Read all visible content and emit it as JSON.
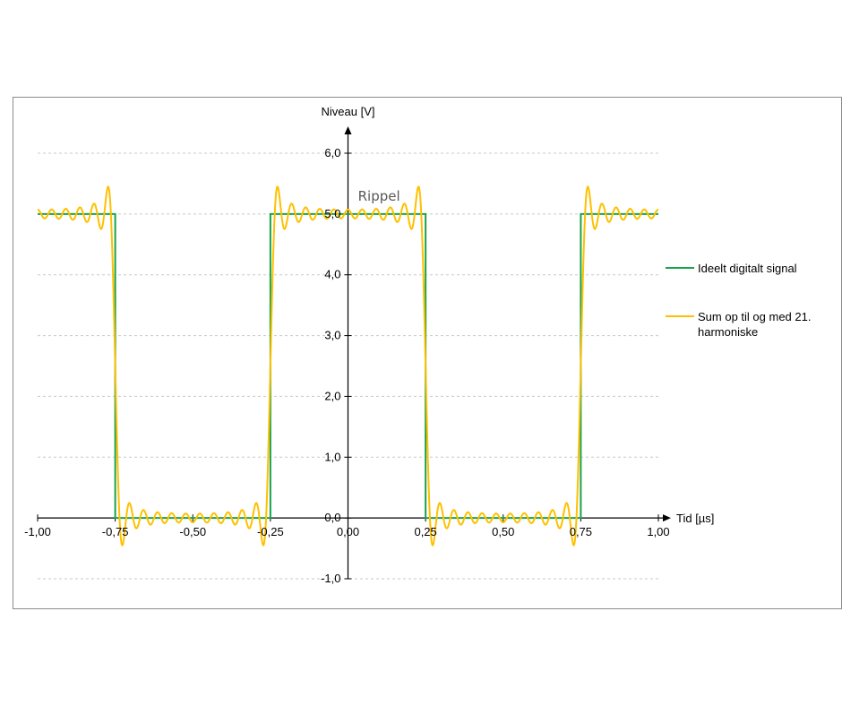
{
  "chart_data": {
    "type": "line",
    "title": "",
    "xlabel": "Tid [µs]",
    "ylabel": "Niveau [V]",
    "xlim": [
      -1.0,
      1.0
    ],
    "ylim": [
      -1.0,
      6.0
    ],
    "x_ticks": [
      -1.0,
      -0.75,
      -0.5,
      -0.25,
      0.0,
      0.25,
      0.5,
      0.75,
      1.0
    ],
    "x_tick_labels": [
      "-1,00",
      "-0,75",
      "-0,50",
      "-0,25",
      "0,00",
      "0,25",
      "0,50",
      "0,75",
      "1,00"
    ],
    "y_ticks": [
      -1.0,
      0.0,
      1.0,
      2.0,
      3.0,
      4.0,
      5.0,
      6.0
    ],
    "y_tick_labels": [
      "-1,0",
      "0,0",
      "1,0",
      "2,0",
      "3,0",
      "4,0",
      "5,0",
      "6,0"
    ],
    "grid": "horizontal dashed",
    "legend_position": "right",
    "annotation": "Rippel",
    "series": [
      {
        "name": "Ideelt digitalt signal",
        "color": "#1aa34a",
        "kind": "square",
        "period": 1.0,
        "high": 5.0,
        "low": 0.0,
        "x": [
          -1.0,
          -0.75,
          -0.75,
          -0.25,
          -0.25,
          0.25,
          0.25,
          0.75,
          0.75,
          1.0
        ],
        "y": [
          5.0,
          5.0,
          0.0,
          0.0,
          5.0,
          5.0,
          0.0,
          0.0,
          5.0,
          5.0
        ]
      },
      {
        "name": "Sum op til og med 21. harmoniske",
        "color": "#ffc000",
        "kind": "fourier",
        "period": 1.0,
        "offset": 2.5,
        "amplitude": 5.0,
        "max_harmonic": 21
      }
    ]
  }
}
